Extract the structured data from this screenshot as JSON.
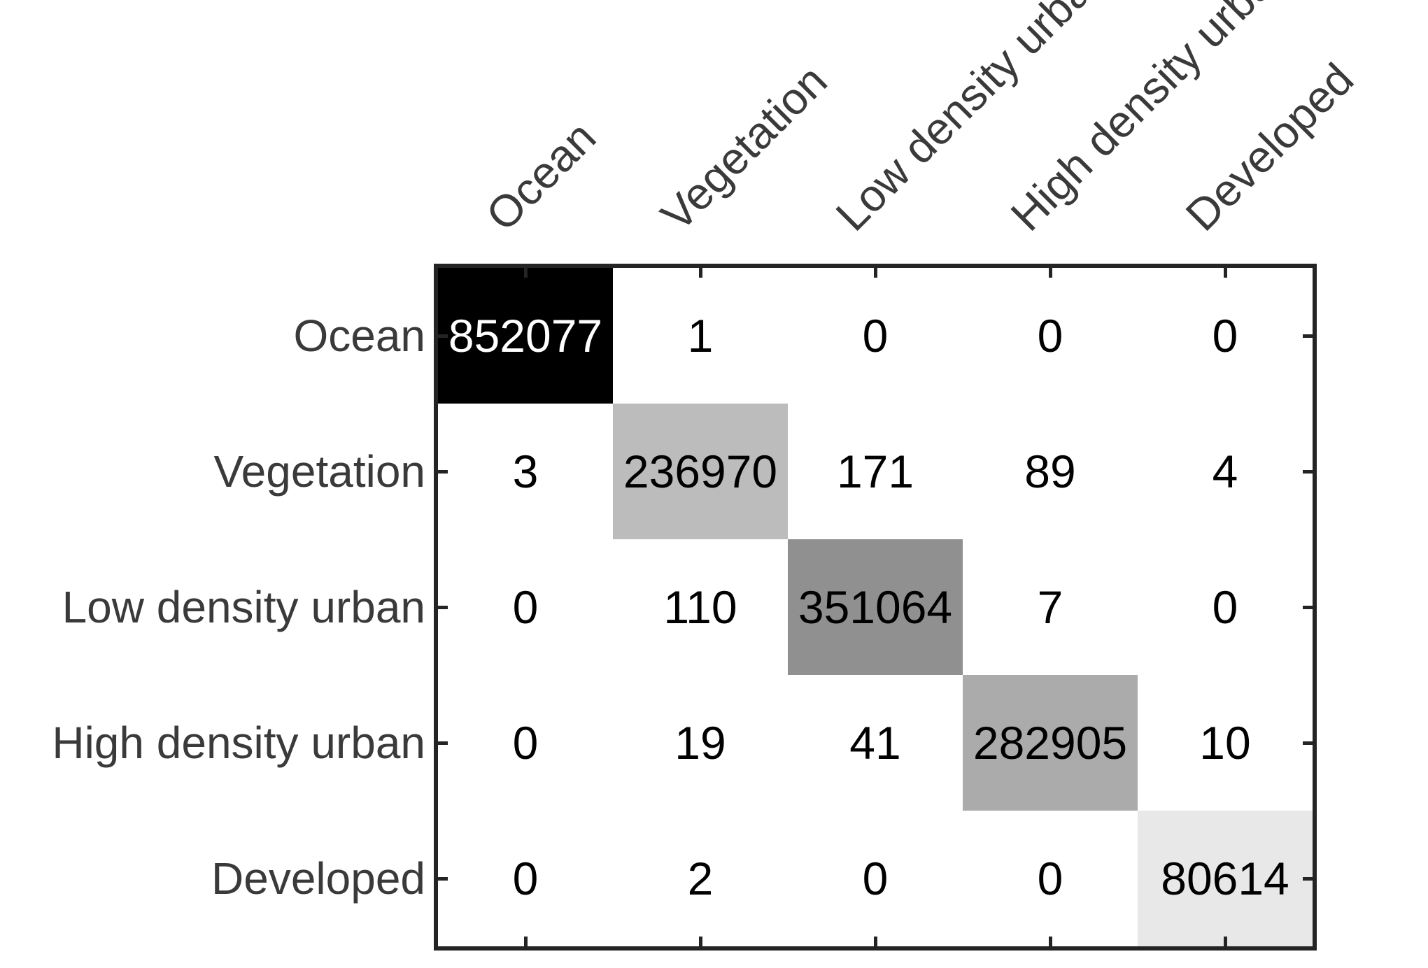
{
  "figure": {
    "background_color": "#ffffff",
    "frame_color": "#242424",
    "axis_label_color": "#3a3a3a",
    "cell_value_color": "#000000"
  },
  "chart_data": {
    "type": "heatmap",
    "subtype": "confusion-matrix",
    "title": "",
    "xlabel": "",
    "ylabel": "",
    "grid": false,
    "legend": "none",
    "classes": [
      "Ocean",
      "Vegetation",
      "Low density urban",
      "High density urban",
      "Developed"
    ],
    "matrix": [
      [
        852077,
        1,
        0,
        0,
        0
      ],
      [
        3,
        236970,
        171,
        89,
        4
      ],
      [
        0,
        110,
        351064,
        7,
        0
      ],
      [
        0,
        19,
        41,
        282905,
        10
      ],
      [
        0,
        2,
        0,
        0,
        80614
      ]
    ],
    "diagonal_colors": [
      "#000000",
      "#bcbcbc",
      "#909090",
      "#ababab",
      "#e8e8e8"
    ],
    "diagonal_text_colors": [
      "#ffffff",
      "#000000",
      "#000000",
      "#000000",
      "#000000"
    ],
    "off_diagonal_color": "#ffffff",
    "color_scale_note": "darker cell = larger count, max 852077"
  }
}
